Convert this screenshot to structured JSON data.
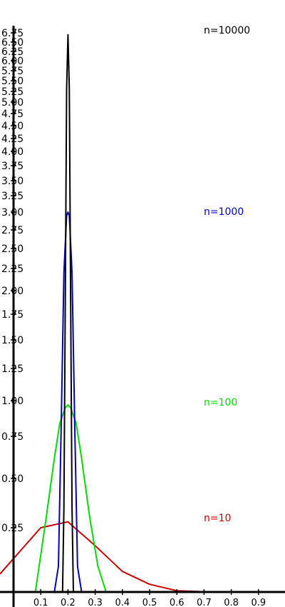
{
  "chart_data": {
    "type": "line",
    "title": "",
    "xlabel": "",
    "ylabel": "",
    "xlim": [
      -0.05,
      1.0
    ],
    "ylim": [
      0,
      6.8
    ],
    "x_ticks": [
      "0.1",
      "0.2",
      "0.3",
      "0.4",
      "0.5",
      "0.6",
      "0.7",
      "0.8",
      "0.9"
    ],
    "y_ticks": [
      "0.25",
      "0.50",
      "0.75",
      "1.00",
      "1.25",
      "1.50",
      "1.75",
      "2.00",
      "2.25",
      "2.50",
      "2.75",
      "3.00",
      "3.25",
      "3.50",
      "3.75",
      "4.00",
      "4.25",
      "4.50",
      "4.75",
      "5.00",
      "5.25",
      "5.50",
      "5.75",
      "6.00",
      "6.25",
      "6.50",
      "6.75"
    ],
    "grid": false,
    "series": [
      {
        "name": "n=10",
        "color": "#cc0000",
        "x": [
          -0.05,
          0.1,
          0.2,
          0.3,
          0.4,
          0.5,
          0.6,
          0.7,
          0.8,
          0.9,
          1.0
        ],
        "y": [
          0.07,
          0.25,
          0.28,
          0.18,
          0.08,
          0.03,
          0.005,
          0.001,
          0.0,
          0.0,
          0.0
        ]
      },
      {
        "name": "n=100",
        "color": "#00dd00",
        "x": [
          0.08,
          0.12,
          0.15,
          0.17,
          0.19,
          0.2,
          0.21,
          0.23,
          0.25,
          0.28,
          0.31,
          0.34
        ],
        "y": [
          0.0,
          0.3,
          0.62,
          0.84,
          0.95,
          0.97,
          0.95,
          0.84,
          0.62,
          0.3,
          0.1,
          0.0
        ]
      },
      {
        "name": "n=1000",
        "color": "#0000bb",
        "x": [
          0.15,
          0.165,
          0.175,
          0.185,
          0.195,
          0.2,
          0.205,
          0.215,
          0.225,
          0.235,
          0.25
        ],
        "y": [
          0.0,
          0.1,
          0.8,
          2.2,
          2.95,
          3.0,
          2.95,
          2.2,
          0.8,
          0.1,
          0.0
        ]
      },
      {
        "name": "n=10000",
        "color": "#000000",
        "x": [
          0.18,
          0.185,
          0.19,
          0.195,
          0.2,
          0.205,
          0.21,
          0.215,
          0.22
        ],
        "y": [
          0.0,
          0.35,
          1.85,
          5.3,
          6.7,
          5.3,
          1.85,
          0.35,
          0.0
        ]
      }
    ]
  }
}
